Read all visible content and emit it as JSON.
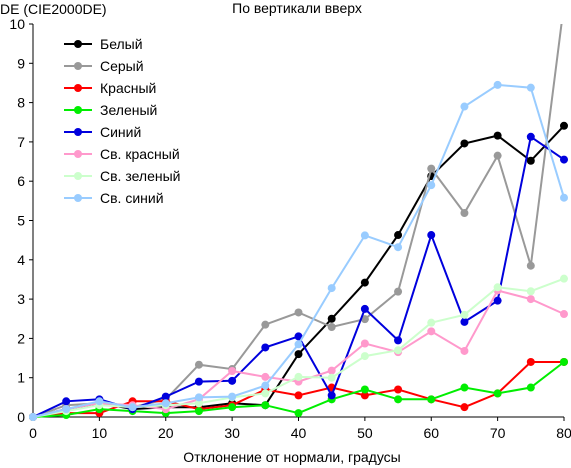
{
  "chart_data": {
    "type": "line",
    "title": "По вертикали вверх",
    "ylabel": "DE (CIE2000DE)",
    "xlabel": "Отклонение от нормали, градусы",
    "xlim": [
      0,
      80
    ],
    "ylim": [
      0,
      10
    ],
    "x_ticks": [
      0,
      10,
      20,
      30,
      40,
      50,
      60,
      70,
      80
    ],
    "y_ticks": [
      0,
      1,
      2,
      3,
      4,
      5,
      6,
      7,
      8,
      9,
      10
    ],
    "grid": false,
    "legend_position": "top-left",
    "x": [
      0,
      5,
      10,
      15,
      20,
      25,
      30,
      35,
      40,
      45,
      50,
      55,
      60,
      65,
      70,
      75,
      80
    ],
    "series": [
      {
        "name": "Белый",
        "color": "#000000",
        "values": [
          0,
          0.2,
          0.35,
          0.2,
          0.25,
          0.25,
          0.35,
          0.3,
          1.6,
          2.5,
          3.42,
          4.63,
          6.13,
          6.96,
          7.16,
          6.52,
          7.41
        ]
      },
      {
        "name": "Серый",
        "color": "#999999",
        "values": [
          0,
          0.3,
          0.35,
          0.25,
          0.45,
          1.33,
          1.22,
          2.35,
          2.66,
          2.29,
          2.49,
          3.19,
          6.32,
          5.19,
          6.65,
          3.85,
          10.5
        ]
      },
      {
        "name": "Красный",
        "color": "#ff0000",
        "values": [
          0,
          0.1,
          0.1,
          0.4,
          0.4,
          0.2,
          0.3,
          0.7,
          0.55,
          0.75,
          0.55,
          0.7,
          0.45,
          0.25,
          0.6,
          1.4,
          1.4
        ]
      },
      {
        "name": "Зеленый",
        "color": "#00ee00",
        "values": [
          0,
          0.05,
          0.2,
          0.15,
          0.1,
          0.15,
          0.25,
          0.3,
          0.1,
          0.45,
          0.7,
          0.45,
          0.45,
          0.75,
          0.6,
          0.75,
          1.4
        ]
      },
      {
        "name": "Синий",
        "color": "#0000dd",
        "values": [
          0,
          0.4,
          0.45,
          0.2,
          0.52,
          0.9,
          0.92,
          1.77,
          2.05,
          0.55,
          2.75,
          1.95,
          4.63,
          2.42,
          2.96,
          7.13,
          6.55
        ]
      },
      {
        "name": "Св. красный",
        "color": "#ff99cc",
        "values": [
          0,
          0.2,
          0.35,
          0.3,
          0.2,
          0.45,
          1.17,
          1.02,
          0.9,
          1.18,
          1.87,
          1.65,
          2.18,
          1.68,
          3.22,
          3.0,
          2.62
        ]
      },
      {
        "name": "Св. зеленый",
        "color": "#ccffcc",
        "values": [
          0,
          0.15,
          0.3,
          0.25,
          0.3,
          0.35,
          0.5,
          0.6,
          1.02,
          1.0,
          1.55,
          1.7,
          2.4,
          2.6,
          3.3,
          3.2,
          3.52
        ]
      },
      {
        "name": "Св. синий",
        "color": "#99ccff",
        "values": [
          0,
          0.2,
          0.4,
          0.25,
          0.35,
          0.5,
          0.52,
          0.8,
          1.85,
          3.28,
          4.62,
          4.32,
          5.9,
          7.9,
          8.45,
          8.38,
          5.58
        ]
      }
    ]
  }
}
